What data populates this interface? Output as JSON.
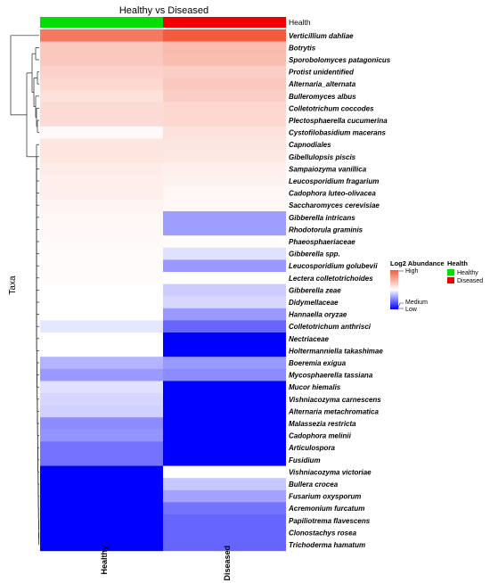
{
  "chart_data": {
    "type": "heatmap",
    "title": "Healthy vs Diseased",
    "ylabel": "Taxa",
    "columns": [
      "Healthy",
      "Diseased"
    ],
    "annotation": {
      "title": "Health",
      "entries": [
        {
          "label": "Healthy",
          "color": "#00e000"
        },
        {
          "label": "Diseased",
          "color": "#ee0000"
        }
      ]
    },
    "color_scale": {
      "title": "Log2 Abundance",
      "labels": [
        "High",
        "Medium",
        "Low"
      ],
      "colors": [
        "#f25c3d",
        "#ffffff",
        "#0000ff"
      ]
    },
    "rows": [
      {
        "taxon": "Verticillium dahliae",
        "values": [
          0.82,
          1.0
        ]
      },
      {
        "taxon": "Botrytis",
        "values": [
          0.34,
          0.42
        ]
      },
      {
        "taxon": "Sporobolomyces patagonicus",
        "values": [
          0.34,
          0.4
        ]
      },
      {
        "taxon": "Protist unidentified",
        "values": [
          0.28,
          0.3
        ]
      },
      {
        "taxon": "Alternaria_alternata",
        "values": [
          0.24,
          0.34
        ]
      },
      {
        "taxon": "Bulleromyces albus",
        "values": [
          0.18,
          0.3
        ]
      },
      {
        "taxon": "Colletotrichum coccodes",
        "values": [
          0.22,
          0.24
        ]
      },
      {
        "taxon": "Plectosphaerella cucumerina",
        "values": [
          0.22,
          0.24
        ]
      },
      {
        "taxon": "Cystofilobasidium macerans",
        "values": [
          0.03,
          0.18
        ]
      },
      {
        "taxon": "Capnodiales",
        "values": [
          0.16,
          0.16
        ]
      },
      {
        "taxon": "Gibellulopsis piscis",
        "values": [
          0.16,
          0.14
        ]
      },
      {
        "taxon": "Sampaiozyma vanillica",
        "values": [
          0.12,
          0.1
        ]
      },
      {
        "taxon": "Leucosporidium fragarium",
        "values": [
          0.1,
          0.08
        ]
      },
      {
        "taxon": "Cadophora luteo-olivacea",
        "values": [
          0.1,
          0.05
        ]
      },
      {
        "taxon": "Saccharomyces cerevisiae",
        "values": [
          0.07,
          0.05
        ]
      },
      {
        "taxon": "Gibberella intricans",
        "values": [
          0.05,
          -0.38
        ]
      },
      {
        "taxon": "Rhodotorula graminis",
        "values": [
          0.05,
          -0.38
        ]
      },
      {
        "taxon": "Phaeosphaeriaceae",
        "values": [
          0.03,
          0.02
        ]
      },
      {
        "taxon": "Gibberella spp.",
        "values": [
          0.02,
          -0.12
        ]
      },
      {
        "taxon": "Leucosporidium golubevii",
        "values": [
          0.02,
          -0.4
        ]
      },
      {
        "taxon": "Lectera colletotrichoides",
        "values": [
          0.02,
          0.0
        ]
      },
      {
        "taxon": "Gibberella zeae",
        "values": [
          0.0,
          -0.2
        ]
      },
      {
        "taxon": "Didymellaceae",
        "values": [
          0.0,
          -0.16
        ]
      },
      {
        "taxon": "Hannaella oryzae",
        "values": [
          0.0,
          -0.4
        ]
      },
      {
        "taxon": "Colletotrichum anthrisci",
        "values": [
          -0.1,
          -0.6
        ]
      },
      {
        "taxon": "Nectriaceae",
        "values": [
          0.0,
          -1.0
        ]
      },
      {
        "taxon": "Holtermanniella takashimae",
        "values": [
          0.0,
          -1.0
        ]
      },
      {
        "taxon": "Boeremia exigua",
        "values": [
          -0.3,
          -0.4
        ]
      },
      {
        "taxon": "Mycosphaerella tassiana",
        "values": [
          -0.4,
          -0.45
        ]
      },
      {
        "taxon": "Mucor hiemalis",
        "values": [
          -0.12,
          -1.0
        ]
      },
      {
        "taxon": "Vishniacozyma carnescens",
        "values": [
          -0.16,
          -1.0
        ]
      },
      {
        "taxon": "Alternaria metachromatica",
        "values": [
          -0.18,
          -1.0
        ]
      },
      {
        "taxon": "Malassezia restricta",
        "values": [
          -0.45,
          -1.0
        ]
      },
      {
        "taxon": "Cadophora melinii",
        "values": [
          -0.42,
          -1.0
        ]
      },
      {
        "taxon": "Articulospora",
        "values": [
          -0.55,
          -1.0
        ]
      },
      {
        "taxon": "Fusidium",
        "values": [
          -0.55,
          -1.0
        ]
      },
      {
        "taxon": "Vishniacozyma victoriae",
        "values": [
          -1.0,
          0.0
        ]
      },
      {
        "taxon": "Bullera crocea",
        "values": [
          -1.0,
          -0.22
        ]
      },
      {
        "taxon": "Fusarium oxysporum",
        "values": [
          -1.0,
          -0.36
        ]
      },
      {
        "taxon": "Acremonium furcatum",
        "values": [
          -1.0,
          -0.55
        ]
      },
      {
        "taxon": "Papiliotrema flavescens",
        "values": [
          -1.0,
          -0.6
        ]
      },
      {
        "taxon": "Clonostachys rosea",
        "values": [
          -1.0,
          -0.6
        ]
      },
      {
        "taxon": "Trichoderma hamatum",
        "values": [
          -1.0,
          -0.6
        ]
      }
    ]
  }
}
